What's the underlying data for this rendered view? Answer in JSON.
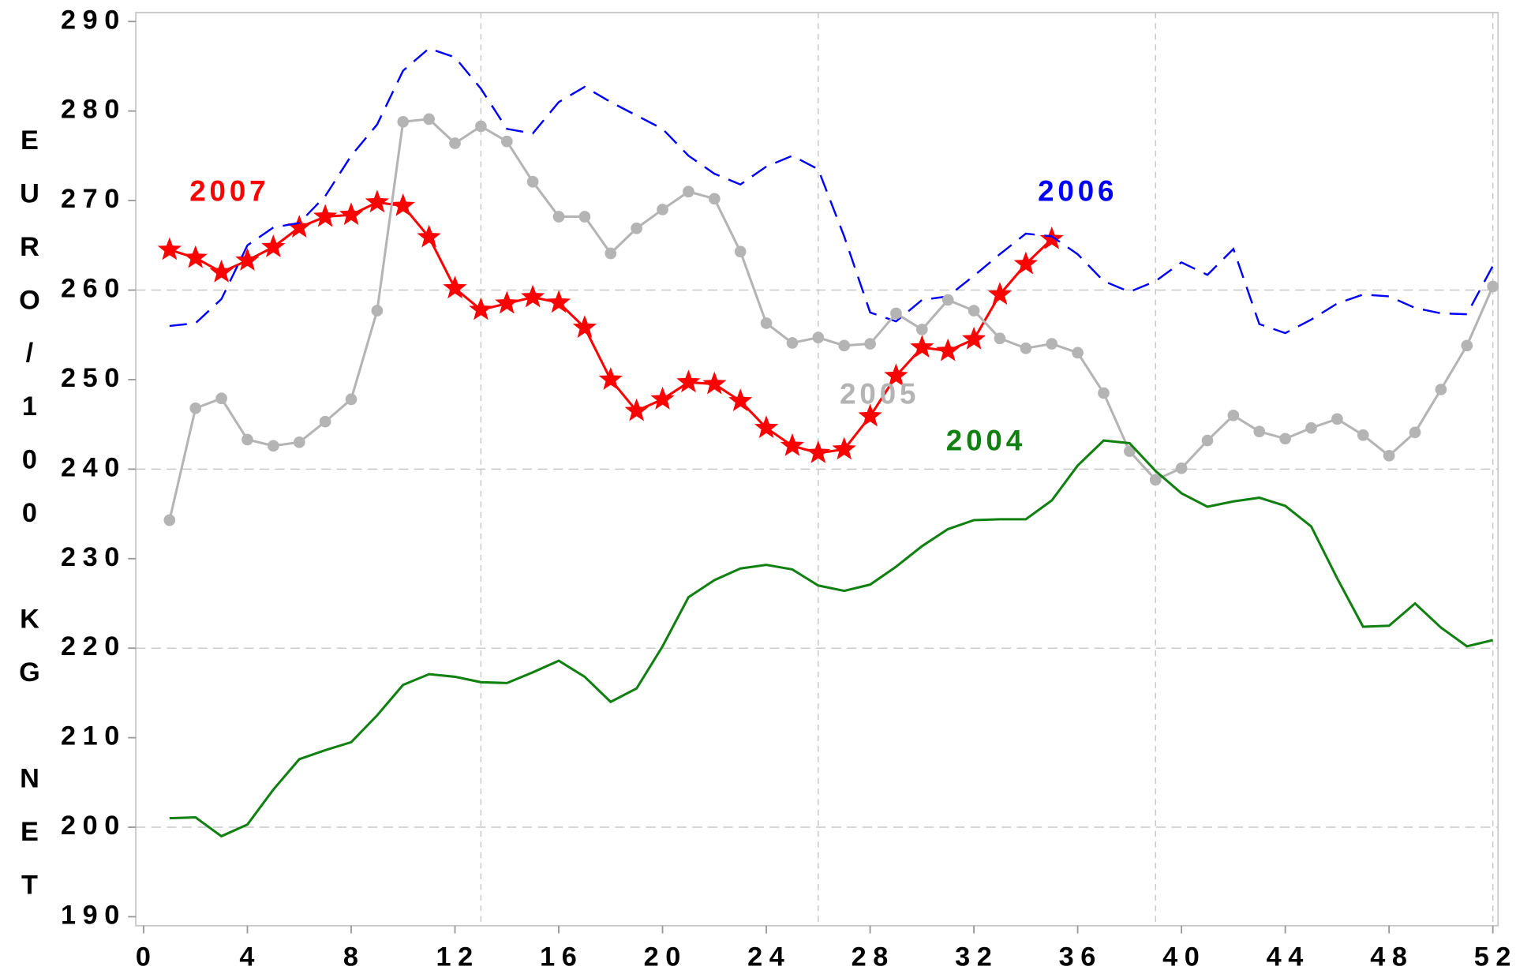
{
  "chart_data": {
    "type": "line",
    "y_label": "EURO/100 KG NET",
    "x": [
      1,
      2,
      3,
      4,
      5,
      6,
      7,
      8,
      9,
      10,
      11,
      12,
      13,
      14,
      15,
      16,
      17,
      18,
      19,
      20,
      21,
      22,
      23,
      24,
      25,
      26,
      27,
      28,
      29,
      30,
      31,
      32,
      33,
      34,
      35,
      36,
      37,
      38,
      39,
      40,
      41,
      42,
      43,
      44,
      45,
      46,
      47,
      48,
      49,
      50,
      51,
      52
    ],
    "series": [
      {
        "name": "2007",
        "color": "#ff0000",
        "marker": "star",
        "dashed": false,
        "values": [
          264.5,
          263.6,
          262,
          263.3,
          264.8,
          267,
          268.2,
          268.4,
          269.8,
          269.4,
          265.9,
          260.2,
          257.8,
          258.5,
          259.2,
          258.6,
          255.8,
          250,
          246.5,
          247.8,
          249.7,
          249.5,
          247.6,
          244.6,
          242.6,
          241.8,
          242.2,
          245.9,
          250.4,
          253.6,
          253.2,
          254.5,
          259.5,
          262.9,
          265.7,
          null,
          null,
          null,
          null,
          null,
          null,
          null,
          null,
          null,
          null,
          null,
          null,
          null,
          null,
          null,
          null,
          null
        ]
      },
      {
        "name": "2006",
        "color": "#0000ff",
        "marker": "none",
        "dashed": true,
        "values": [
          256,
          256.3,
          259,
          265,
          267,
          267.5,
          270.5,
          275,
          278.5,
          284.5,
          287,
          286,
          282.5,
          278,
          277.5,
          281,
          282.7,
          281,
          279.5,
          278,
          275,
          273,
          271.8,
          273.8,
          275,
          273.5,
          266,
          257.5,
          256.5,
          258.9,
          259.3,
          261.6,
          264,
          266.3,
          266,
          264,
          261,
          259.8,
          261,
          263.1,
          261.7,
          264.6,
          256.2,
          255.2,
          256.7,
          258.5,
          259.5,
          259.3,
          258,
          257.4,
          257.3,
          262.7
        ]
      },
      {
        "name": "2005",
        "color": "#b4b4b4",
        "marker": "circle",
        "dashed": false,
        "values": [
          234.3,
          246.8,
          247.9,
          243.3,
          242.6,
          243,
          245.3,
          247.8,
          257.7,
          278.8,
          279.1,
          276.4,
          278.3,
          276.6,
          272.1,
          268.2,
          268.2,
          264.1,
          266.9,
          269,
          271,
          270.2,
          264.3,
          256.3,
          254.1,
          254.7,
          253.8,
          254,
          257.4,
          255.6,
          258.9,
          257.7,
          254.6,
          253.5,
          254,
          253,
          248.5,
          242,
          238.8,
          240.1,
          243.2,
          246,
          244.2,
          243.4,
          244.6,
          245.6,
          243.8,
          241.5,
          244.1,
          248.9,
          253.8,
          260.4
        ]
      },
      {
        "name": "2004",
        "color": "#108010",
        "marker": "none",
        "dashed": false,
        "values": [
          201,
          201.1,
          199,
          200.3,
          204.2,
          207.6,
          208.6,
          209.5,
          212.5,
          215.9,
          217.1,
          216.8,
          216.2,
          216.1,
          217.3,
          218.6,
          216.8,
          214,
          215.5,
          220.2,
          225.7,
          227.6,
          228.9,
          229.3,
          228.8,
          227,
          226.4,
          227.1,
          229.1,
          231.4,
          233.3,
          234.3,
          234.4,
          234.4,
          236.5,
          240.4,
          243.2,
          242.9,
          239.8,
          237.3,
          235.8,
          236.4,
          236.8,
          235.9,
          233.6,
          227.8,
          222.4,
          222.5,
          225,
          222.3,
          220.2,
          220.9
        ]
      }
    ],
    "xlim": [
      -0.3,
      52.2
    ],
    "ylim": [
      189,
      291
    ],
    "xticks": [
      0,
      4,
      8,
      12,
      16,
      20,
      24,
      28,
      32,
      36,
      40,
      44,
      48,
      52
    ],
    "yticks": [
      190,
      200,
      210,
      220,
      230,
      240,
      250,
      260,
      270,
      280,
      290
    ],
    "xgrid": [
      13,
      26,
      39,
      52
    ],
    "ygrid": [
      200,
      220,
      240,
      260
    ]
  }
}
